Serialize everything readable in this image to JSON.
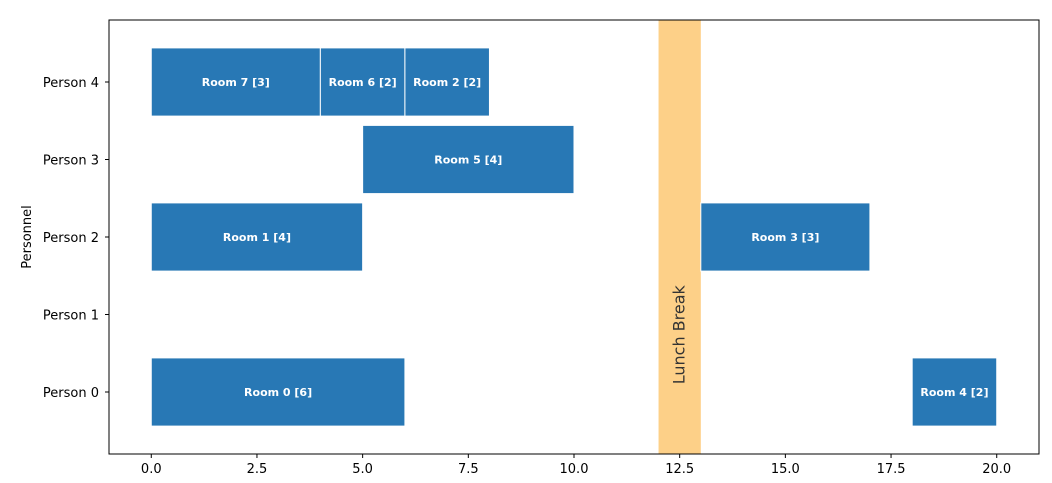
{
  "chart_data": {
    "type": "gantt",
    "ylabel": "Personnel",
    "xlim": [
      -1,
      21
    ],
    "xticks": [
      0.0,
      2.5,
      5.0,
      7.5,
      10.0,
      12.5,
      15.0,
      17.5,
      20.0
    ],
    "xtick_labels": [
      "0.0",
      "2.5",
      "5.0",
      "7.5",
      "10.0",
      "12.5",
      "15.0",
      "17.5",
      "20.0"
    ],
    "categories": [
      "Person 0",
      "Person 1",
      "Person 2",
      "Person 3",
      "Person 4"
    ],
    "grid": false,
    "bar_color": "#2878b5",
    "bars": [
      {
        "row": 4,
        "start": 0,
        "end": 4,
        "label": "Room 7 [3]"
      },
      {
        "row": 4,
        "start": 4,
        "end": 6,
        "label": "Room 6 [2]"
      },
      {
        "row": 4,
        "start": 6,
        "end": 8,
        "label": "Room 2 [2]"
      },
      {
        "row": 3,
        "start": 5,
        "end": 10,
        "label": "Room 5 [4]"
      },
      {
        "row": 2,
        "start": 0,
        "end": 5,
        "label": "Room 1 [4]"
      },
      {
        "row": 2,
        "start": 13,
        "end": 17,
        "label": "Room 3 [3]"
      },
      {
        "row": 0,
        "start": 0,
        "end": 6,
        "label": "Room 0 [6]"
      },
      {
        "row": 0,
        "start": 18,
        "end": 20,
        "label": "Room 4 [2]"
      }
    ],
    "band": {
      "start": 12,
      "end": 13,
      "label": "Lunch Break",
      "color": "#fdd088"
    }
  }
}
